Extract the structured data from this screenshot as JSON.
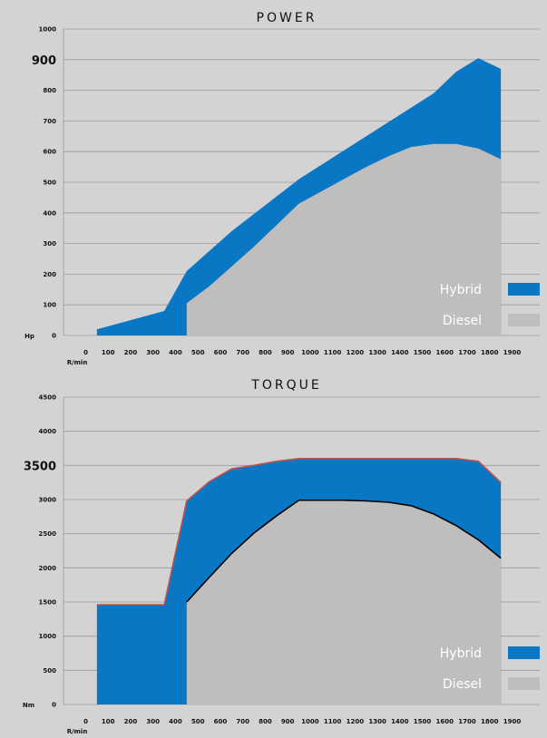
{
  "colors": {
    "hybrid": "#0a77c5",
    "diesel": "#c0bebc",
    "background": "#d3d3d3",
    "torque_line_hybrid": "#c0504d",
    "torque_line_diesel": "#000000"
  },
  "chart_data": [
    {
      "type": "area",
      "title": "POWER",
      "ylabel": "Hp",
      "xlabel": "R/min",
      "ylim": [
        0,
        1000
      ],
      "xlim": [
        0,
        1900
      ],
      "y_ticks": [
        "0",
        "100",
        "200",
        "300",
        "400",
        "500",
        "600",
        "700",
        "800",
        "900",
        "1000"
      ],
      "y_highlight": "900",
      "x_ticks": [
        "0",
        "100",
        "200",
        "300",
        "400",
        "500",
        "600",
        "700",
        "800",
        "900",
        "1000",
        "1100",
        "1200",
        "1300",
        "1400",
        "1500",
        "1600",
        "1700",
        "1800",
        "1900"
      ],
      "legend": [
        {
          "label": "Hybrid",
          "color": "#0a77c5"
        },
        {
          "label": "Diesel",
          "color": "#c0bebc"
        }
      ],
      "series": [
        {
          "name": "Hybrid",
          "x": [
            50,
            350,
            450,
            650,
            950,
            1250,
            1550,
            1650,
            1750,
            1850
          ],
          "y": [
            20,
            80,
            210,
            340,
            510,
            650,
            790,
            860,
            905,
            870
          ]
        },
        {
          "name": "Diesel",
          "x": [
            450,
            550,
            650,
            750,
            850,
            950,
            1050,
            1150,
            1250,
            1350,
            1450,
            1550,
            1650,
            1750,
            1850
          ],
          "y": [
            105,
            160,
            225,
            290,
            360,
            430,
            470,
            510,
            550,
            585,
            615,
            625,
            625,
            610,
            575
          ]
        }
      ]
    },
    {
      "type": "area",
      "title": "TORQUE",
      "ylabel": "Nm",
      "xlabel": "R/min",
      "ylim": [
        0,
        4500
      ],
      "xlim": [
        0,
        1900
      ],
      "y_ticks": [
        "0",
        "500",
        "1000",
        "1500",
        "2000",
        "2500",
        "3000",
        "3500",
        "4000",
        "4500"
      ],
      "y_highlight": "3500",
      "x_ticks": [
        "0",
        "100",
        "200",
        "300",
        "400",
        "500",
        "600",
        "700",
        "800",
        "900",
        "1000",
        "1100",
        "1200",
        "1300",
        "1400",
        "1500",
        "1600",
        "1700",
        "1800",
        "1900"
      ],
      "legend": [
        {
          "label": "Hybrid",
          "color": "#0a77c5"
        },
        {
          "label": "Diesel",
          "color": "#c0bebc"
        }
      ],
      "series": [
        {
          "name": "Hybrid",
          "x": [
            50,
            350,
            450,
            550,
            650,
            750,
            850,
            950,
            1050,
            1150,
            1250,
            1350,
            1450,
            1550,
            1650,
            1750,
            1850
          ],
          "y": [
            1460,
            1460,
            2980,
            3260,
            3450,
            3500,
            3560,
            3600,
            3600,
            3600,
            3600,
            3600,
            3600,
            3600,
            3600,
            3560,
            3250
          ]
        },
        {
          "name": "Diesel",
          "x": [
            450,
            550,
            650,
            750,
            850,
            950,
            1050,
            1150,
            1250,
            1350,
            1450,
            1550,
            1650,
            1750,
            1850
          ],
          "y": [
            1500,
            1860,
            2210,
            2510,
            2760,
            2990,
            2990,
            2990,
            2980,
            2960,
            2910,
            2790,
            2620,
            2410,
            2140
          ]
        }
      ]
    }
  ]
}
